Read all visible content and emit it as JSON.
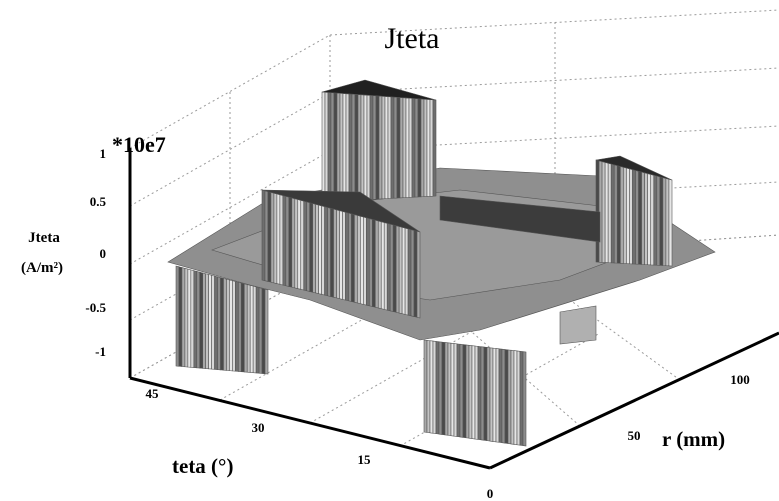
{
  "chart_data": {
    "type": "surface3d",
    "title": "Jteta",
    "multiplier": "*10e7",
    "zlabel_line1": "Jteta",
    "zlabel_line2": "(A/m²)",
    "xlabel": "teta (°)",
    "ylabel": "r (mm)",
    "z_ticks": [
      "1",
      "0.5",
      "0",
      "-0.5",
      "-1"
    ],
    "x_ticks": [
      "45",
      "30",
      "15",
      "0"
    ],
    "y_ticks": [
      "50",
      "100"
    ],
    "zlim": [
      -1,
      1
    ],
    "grid": true,
    "colormap": "gray"
  }
}
